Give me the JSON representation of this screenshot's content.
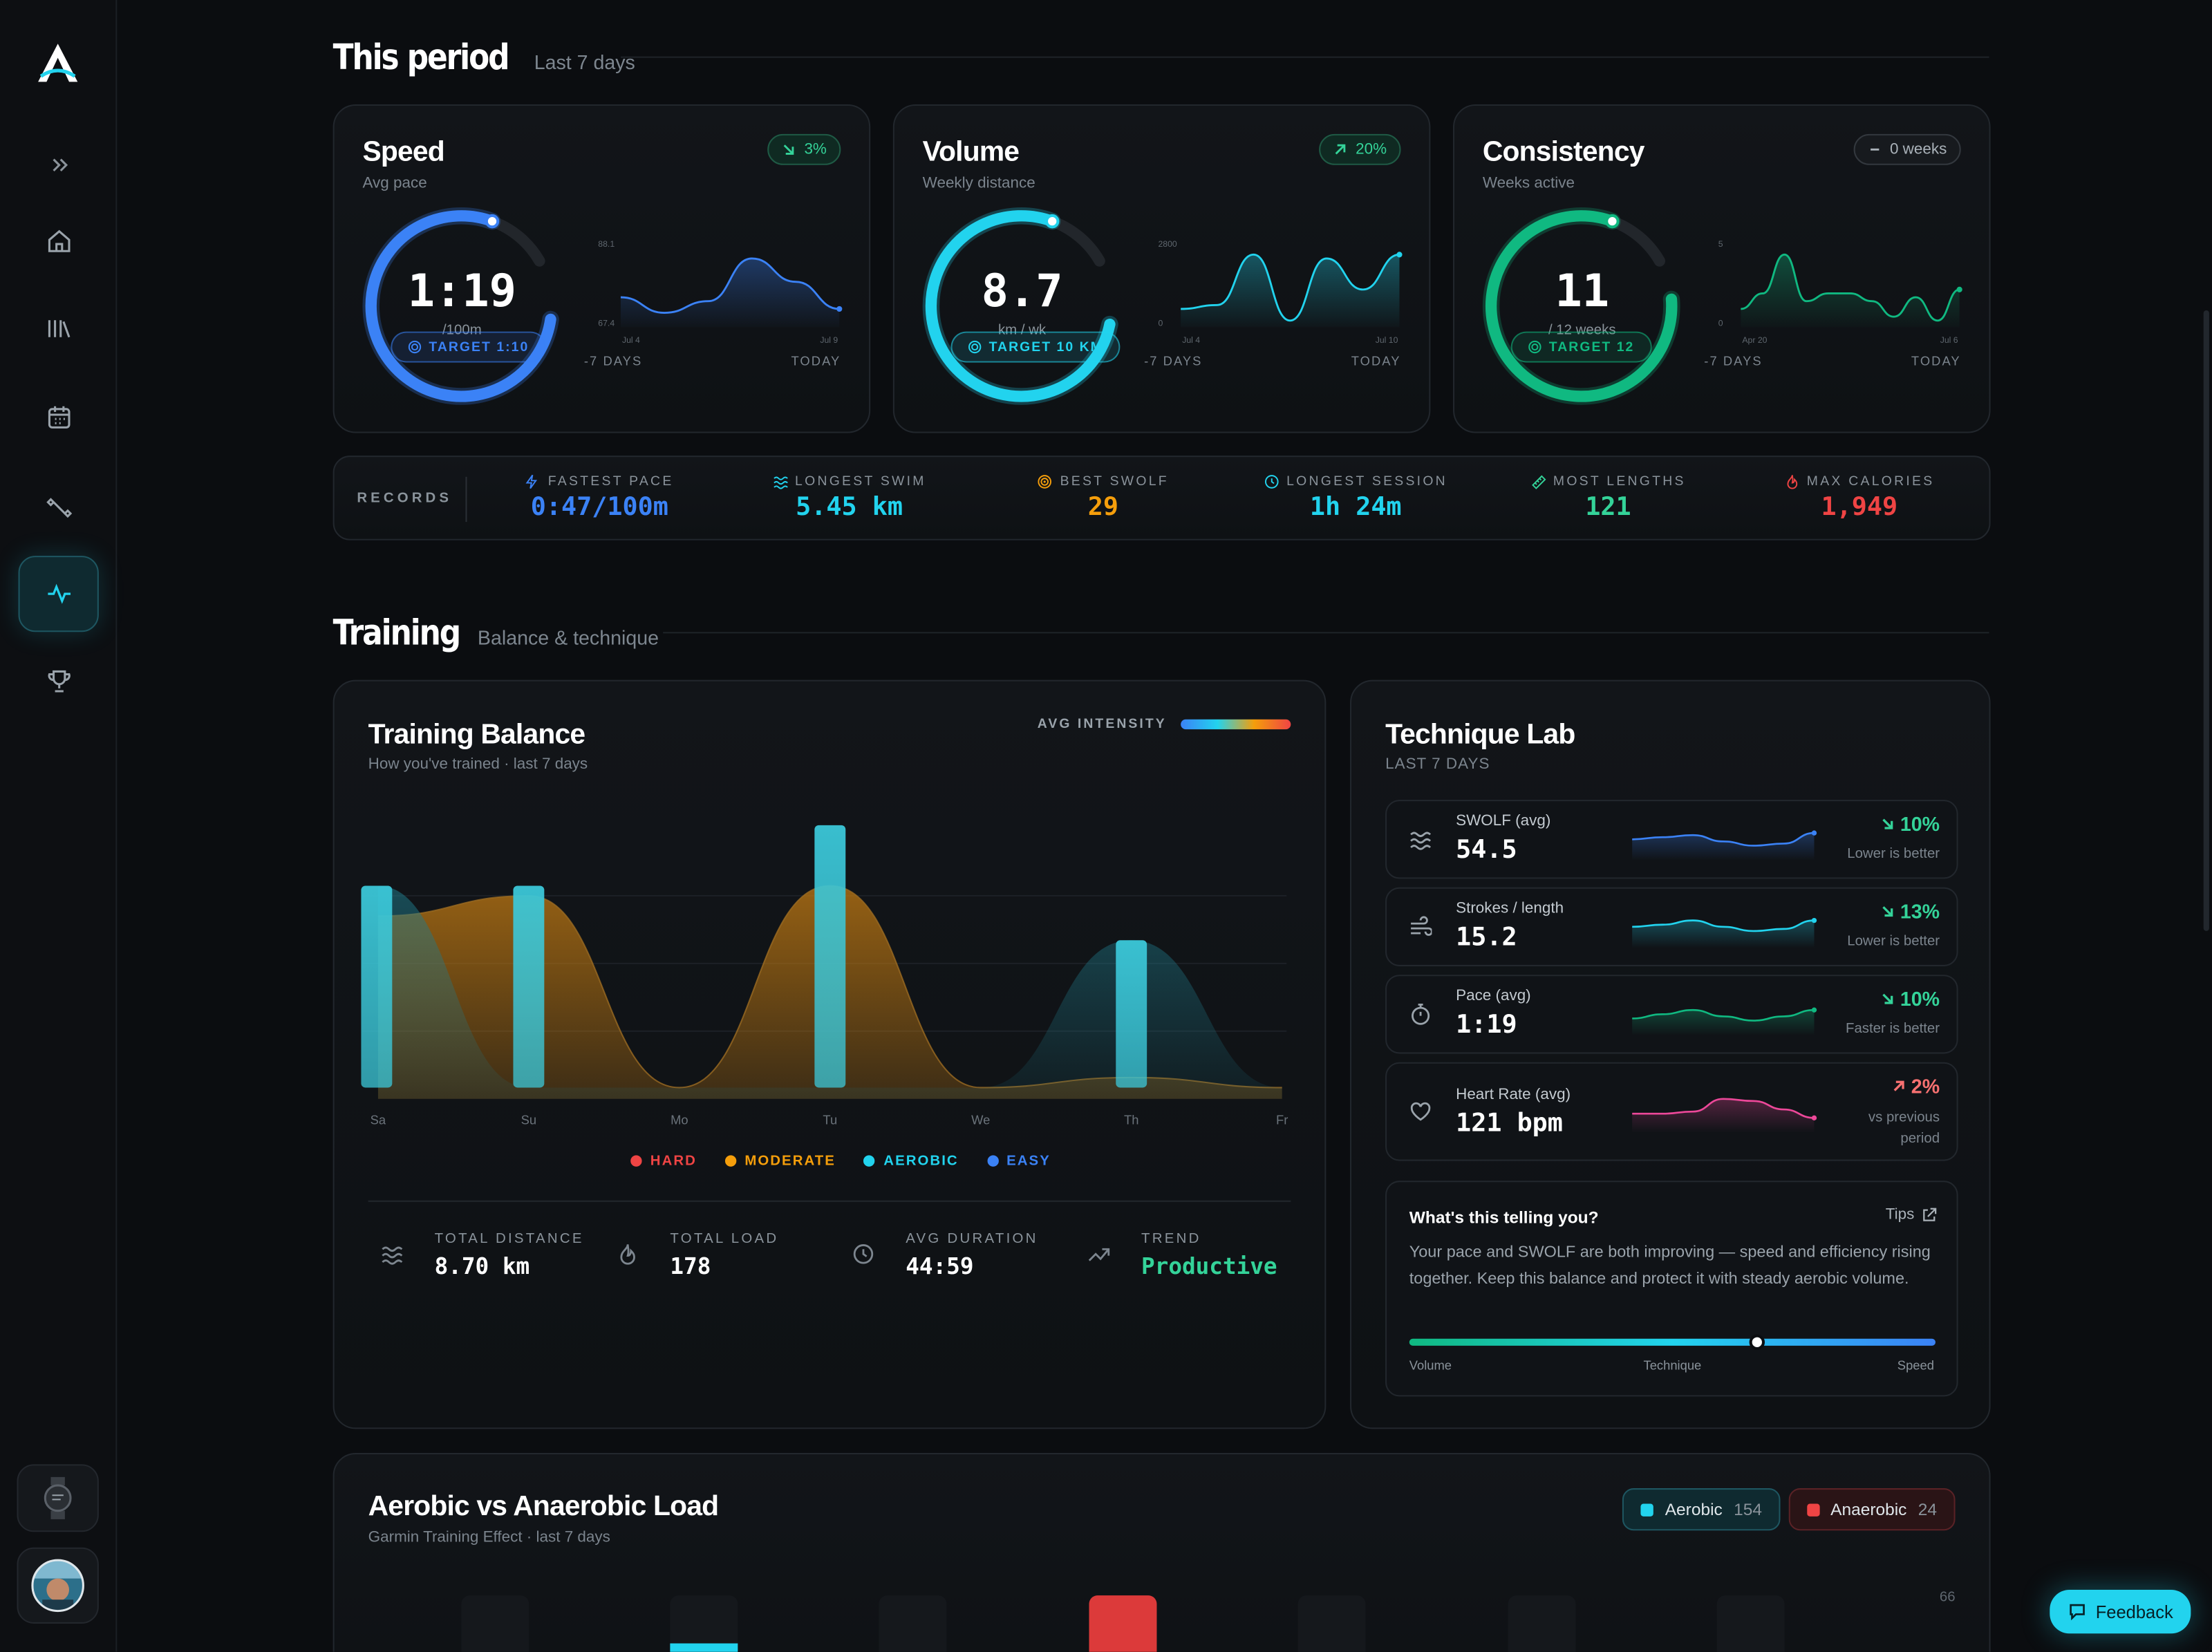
{
  "this_period": {
    "title": "This period",
    "subtitle": "Last 7 days",
    "cards": [
      {
        "title": "Speed",
        "subtitle": "Avg pace",
        "delta": "3%",
        "delta_dir": "down",
        "value": "1:19",
        "unit": "/100m",
        "target": "TARGET 1:10",
        "ring_progress": 0.88,
        "color": "#3b82f6",
        "spark_y_max": "88.1",
        "spark_y_min": "67.4",
        "spark_x_start": "Jul 4",
        "spark_x_end": "Jul 9",
        "axis_left": "-7 DAYS",
        "axis_right": "TODAY",
        "spark": [
          0.35,
          0.15,
          0.3,
          0.85,
          0.55,
          0.2
        ]
      },
      {
        "title": "Volume",
        "subtitle": "Weekly distance",
        "delta": "20%",
        "delta_dir": "up",
        "value": "8.7",
        "unit": "km / wk",
        "target": "TARGET 10 KM",
        "ring_progress": 0.87,
        "color": "#22d3ee",
        "spark_y_max": "2800",
        "spark_y_min": "0",
        "spark_x_start": "Jul 4",
        "spark_x_end": "Jul 10",
        "axis_left": "-7 DAYS",
        "axis_right": "TODAY",
        "spark": [
          0.2,
          0.25,
          0.9,
          0.05,
          0.85,
          0.45,
          0.9
        ]
      },
      {
        "title": "Consistency",
        "subtitle": "Weeks active",
        "delta": "0 weeks",
        "delta_dir": "flat",
        "value": "11",
        "unit": "/ 12 weeks",
        "target": "TARGET 12",
        "ring_progress": 0.92,
        "color": "#10b981",
        "spark_y_max": "5",
        "spark_y_min": "0",
        "spark_x_start": "Apr 20",
        "spark_x_end": "Jul 6",
        "axis_left": "-7 DAYS",
        "axis_right": "TODAY",
        "spark": [
          0.2,
          0.4,
          0.9,
          0.3,
          0.4,
          0.4,
          0.3,
          0.1,
          0.35,
          0.05,
          0.45
        ]
      }
    ]
  },
  "records": {
    "label": "RECORDS",
    "items": [
      {
        "label": "FASTEST PACE",
        "value": "0:47/100m",
        "color": "#3b82f6",
        "icon": "bolt-icon"
      },
      {
        "label": "LONGEST SWIM",
        "value": "5.45 km",
        "color": "#22d3ee",
        "icon": "waves-icon"
      },
      {
        "label": "BEST SWOLF",
        "value": "29",
        "color": "#f59e0b",
        "icon": "target-icon"
      },
      {
        "label": "LONGEST SESSION",
        "value": "1h 24m",
        "color": "#22d3ee",
        "icon": "clock-icon"
      },
      {
        "label": "MOST LENGTHS",
        "value": "121",
        "color": "#34d399",
        "icon": "ruler-icon"
      },
      {
        "label": "MAX CALORIES",
        "value": "1,949",
        "color": "#ef4444",
        "icon": "flame-icon"
      }
    ]
  },
  "training": {
    "title": "Training",
    "subtitle": "Balance & technique",
    "balance": {
      "title": "Training Balance",
      "subtitle": "How you've trained · last 7 days",
      "avg_intensity_label": "AVG INTENSITY",
      "legend": [
        {
          "label": "HARD",
          "color": "#ef4444"
        },
        {
          "label": "MODERATE",
          "color": "#f59e0b"
        },
        {
          "label": "AEROBIC",
          "color": "#22d3ee"
        },
        {
          "label": "EASY",
          "color": "#3b82f6"
        }
      ],
      "stats": [
        {
          "label": "TOTAL DISTANCE",
          "value": "8.70 km",
          "icon": "waves-icon",
          "color": "#ffffff"
        },
        {
          "label": "TOTAL LOAD",
          "value": "178",
          "icon": "flame-icon",
          "color": "#ffffff"
        },
        {
          "label": "AVG DURATION",
          "value": "44:59",
          "icon": "clock-icon",
          "color": "#ffffff"
        },
        {
          "label": "TREND",
          "value": "Productive",
          "icon": "trend-up-icon",
          "color": "#34d399"
        }
      ]
    },
    "technique": {
      "title": "Technique Lab",
      "subtitle": "LAST 7 DAYS",
      "rows": [
        {
          "name": "SWOLF (avg)",
          "value": "54.5",
          "delta": "10%",
          "dir": "down",
          "note": "Lower is better",
          "color": "#3b82f6",
          "delta_color": "#34d399",
          "icon": "waves-icon"
        },
        {
          "name": "Strokes / length",
          "value": "15.2",
          "delta": "13%",
          "dir": "down",
          "note": "Lower is better",
          "color": "#22d3ee",
          "delta_color": "#34d399",
          "icon": "wind-icon"
        },
        {
          "name": "Pace (avg)",
          "value": "1:19",
          "delta": "10%",
          "dir": "down",
          "note": "Faster is better",
          "color": "#10b981",
          "delta_color": "#34d399",
          "icon": "stopwatch-icon"
        },
        {
          "name": "Heart Rate (avg)",
          "value": "121 bpm",
          "delta": "2%",
          "dir": "up",
          "note": "vs previous period",
          "color": "#ec4899",
          "delta_color": "#f87171",
          "icon": "heart-icon"
        }
      ],
      "tell": {
        "title": "What's this telling you?",
        "tips": "Tips",
        "body": "Your pace and SWOLF are both improving — speed and efficiency rising together. Keep this balance and protect it with steady aerobic volume.",
        "slider_value": 0.66,
        "slider_labels": [
          "Volume",
          "Technique",
          "Speed"
        ]
      }
    }
  },
  "load": {
    "title": "Aerobic vs Anaerobic Load",
    "subtitle": "Garmin Training Effect · last 7 days",
    "aerobic_label": "Aerobic",
    "aerobic_value": "154",
    "anaerobic_label": "Anaerobic",
    "anaerobic_value": "24",
    "y_max_label": "66"
  },
  "feedback_label": "Feedback",
  "chart_data": {
    "type": "area",
    "title": "Training Balance",
    "categories": [
      "Sa",
      "Su",
      "Mo",
      "Tu",
      "We",
      "Th",
      "Fr"
    ],
    "series": [
      {
        "name": "MODERATE",
        "values": [
          0.85,
          0.95,
          0.0,
          1.0,
          0.0,
          0.05,
          0.0
        ]
      },
      {
        "name": "AEROBIC",
        "values": [
          1.0,
          1.0,
          0.0,
          1.3,
          0.0,
          0.73,
          0.0
        ]
      },
      {
        "name": "EASY",
        "values": [
          1.0,
          0.0,
          0.0,
          0.0,
          0.0,
          0.73,
          0.0
        ]
      }
    ],
    "legend": [
      "HARD",
      "MODERATE",
      "AEROBIC",
      "EASY"
    ]
  }
}
